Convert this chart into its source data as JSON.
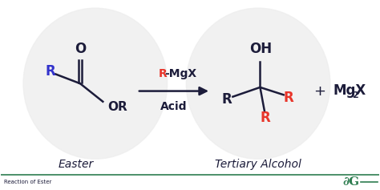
{
  "bg_color": "#ffffff",
  "dark": "#1c1c3a",
  "red": "#e8352a",
  "blue": "#3333cc",
  "green": "#2e7d50",
  "circle_color": "#eeeeee",
  "footer_text": "Reaction of Ester",
  "footer_line_color": "#2e7d50",
  "reactant_label": "Easter",
  "product_label": "Tertiary Alcohol",
  "o_label": "O",
  "oh_label": "OH",
  "or_label": "OR",
  "r_label": "R",
  "mgx2_label": "MgX",
  "plus_label": "+",
  "reagent_r": "R",
  "reagent_suffix": "-MgX",
  "reagent_acid": "Acid"
}
